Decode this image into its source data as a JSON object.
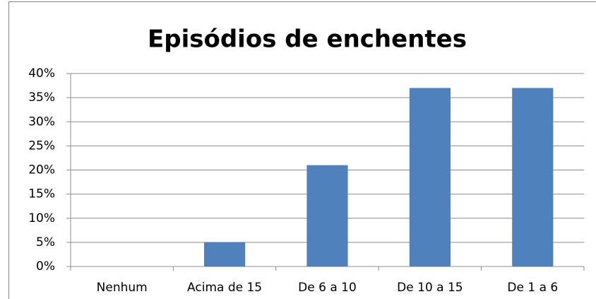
{
  "chart_data": {
    "type": "bar",
    "title": "Episódios de enchentes",
    "categories": [
      "Nenhum",
      "Acima de 15",
      "De 6 a 10",
      "De 10 a 15",
      "De 1 a 6"
    ],
    "values": [
      0,
      5,
      21,
      37,
      37
    ],
    "color": "#4f81bd",
    "ylim": [
      0,
      40
    ],
    "yticks": [
      {
        "value": 0,
        "label": "0%"
      },
      {
        "value": 5,
        "label": "5%"
      },
      {
        "value": 10,
        "label": "10%"
      },
      {
        "value": 15,
        "label": "15%"
      },
      {
        "value": 20,
        "label": "20%"
      },
      {
        "value": 25,
        "label": "25%"
      },
      {
        "value": 30,
        "label": "30%"
      },
      {
        "value": 35,
        "label": "35%"
      },
      {
        "value": 40,
        "label": "40%"
      }
    ],
    "grid": true
  }
}
